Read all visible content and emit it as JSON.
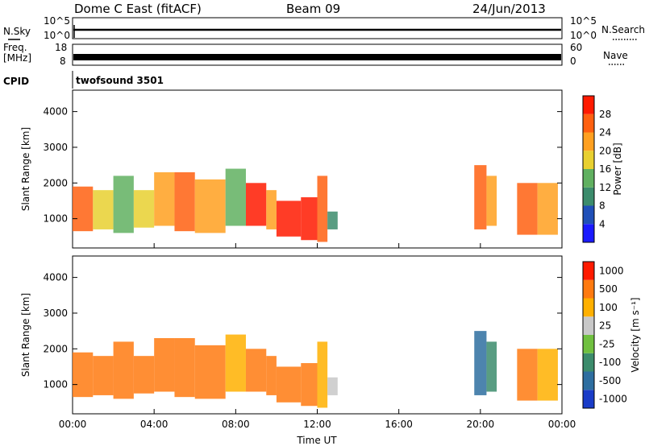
{
  "header": {
    "station": "Dome C East (fitACF)",
    "beam": "Beam 09",
    "date": "24/Jun/2013"
  },
  "panels": {
    "nsky_label": "N.Sky",
    "nsearch_label": "N.Search",
    "freq_label_line1": "Freq.",
    "freq_label_line2": "[MHz]",
    "nave_label": "Nave",
    "cpid_label": "CPID",
    "cpid_value": "twofsound 3501",
    "noise_ticks": [
      "10^5",
      "10^0"
    ],
    "freq_ticks": [
      "18",
      "8"
    ],
    "nave_ticks": [
      "60",
      "0"
    ]
  },
  "chart_data": [
    {
      "type": "heatmap",
      "title": "",
      "xlabel": "Time UT",
      "ylabel": "Slant Range [km]",
      "x_ticks": [
        "00:00",
        "04:00",
        "08:00",
        "12:00",
        "16:00",
        "20:00",
        "00:00"
      ],
      "y_ticks": [
        1000,
        2000,
        3000,
        4000
      ],
      "ylim": [
        180,
        4600
      ],
      "colorbar": {
        "label": "Power [dB]",
        "ticks": [
          4,
          8,
          12,
          16,
          20,
          24,
          28
        ],
        "colors": [
          "#1a1aff",
          "#2050b8",
          "#3c8c6c",
          "#60b060",
          "#e8d030",
          "#ffa020",
          "#ff6010",
          "#ff1a00"
        ]
      },
      "echo_regions": [
        {
          "t_start": 0.0,
          "t_end": 1.0,
          "r_low": 650,
          "r_high": 1900,
          "level": 6
        },
        {
          "t_start": 1.0,
          "t_end": 2.0,
          "r_low": 700,
          "r_high": 1800,
          "level": 4
        },
        {
          "t_start": 2.0,
          "t_end": 3.0,
          "r_low": 600,
          "r_high": 2200,
          "level": 3
        },
        {
          "t_start": 3.0,
          "t_end": 4.0,
          "r_low": 750,
          "r_high": 1800,
          "level": 4
        },
        {
          "t_start": 4.0,
          "t_end": 5.0,
          "r_low": 800,
          "r_high": 2300,
          "level": 5
        },
        {
          "t_start": 5.0,
          "t_end": 6.0,
          "r_low": 650,
          "r_high": 2300,
          "level": 6
        },
        {
          "t_start": 6.0,
          "t_end": 7.5,
          "r_low": 600,
          "r_high": 2100,
          "level": 5
        },
        {
          "t_start": 7.5,
          "t_end": 8.5,
          "r_low": 800,
          "r_high": 2400,
          "level": 3
        },
        {
          "t_start": 8.5,
          "t_end": 9.5,
          "r_low": 800,
          "r_high": 2000,
          "level": 7
        },
        {
          "t_start": 9.5,
          "t_end": 10.0,
          "r_low": 700,
          "r_high": 1800,
          "level": 5
        },
        {
          "t_start": 10.0,
          "t_end": 11.2,
          "r_low": 500,
          "r_high": 1500,
          "level": 7
        },
        {
          "t_start": 11.2,
          "t_end": 12.0,
          "r_low": 400,
          "r_high": 1600,
          "level": 7
        },
        {
          "t_start": 12.0,
          "t_end": 12.5,
          "r_low": 350,
          "r_high": 2200,
          "level": 6
        },
        {
          "t_start": 12.5,
          "t_end": 13.0,
          "r_low": 700,
          "r_high": 1200,
          "level": 2
        },
        {
          "t_start": 19.7,
          "t_end": 20.3,
          "r_low": 700,
          "r_high": 2500,
          "level": 6
        },
        {
          "t_start": 20.3,
          "t_end": 20.8,
          "r_low": 800,
          "r_high": 2200,
          "level": 5
        },
        {
          "t_start": 21.8,
          "t_end": 22.8,
          "r_low": 550,
          "r_high": 2000,
          "level": 6
        },
        {
          "t_start": 22.8,
          "t_end": 23.8,
          "r_low": 550,
          "r_high": 2000,
          "level": 5
        }
      ]
    },
    {
      "type": "heatmap",
      "title": "",
      "xlabel": "Time UT",
      "ylabel": "Slant Range [km]",
      "x_ticks": [
        "00:00",
        "04:00",
        "08:00",
        "12:00",
        "16:00",
        "20:00",
        "00:00"
      ],
      "y_ticks": [
        1000,
        2000,
        3000,
        4000
      ],
      "ylim": [
        180,
        4600
      ],
      "colorbar": {
        "label": "Velocity [m s⁻¹]",
        "ticks": [
          "1000",
          "500",
          "100",
          "25",
          "-25",
          "-100",
          "-500",
          "-1000"
        ],
        "colors": [
          "#1a3cc8",
          "#2e6ea0",
          "#3c8c6c",
          "#70c040",
          "#c8c8c8",
          "#ffb000",
          "#ff7a10",
          "#ff1a00"
        ]
      },
      "echo_regions": [
        {
          "t_start": 0.0,
          "t_end": 1.0,
          "r_low": 650,
          "r_high": 1900,
          "level": 6
        },
        {
          "t_start": 1.0,
          "t_end": 2.0,
          "r_low": 700,
          "r_high": 1800,
          "level": 6
        },
        {
          "t_start": 2.0,
          "t_end": 3.0,
          "r_low": 600,
          "r_high": 2200,
          "level": 6
        },
        {
          "t_start": 3.0,
          "t_end": 4.0,
          "r_low": 750,
          "r_high": 1800,
          "level": 6
        },
        {
          "t_start": 4.0,
          "t_end": 5.0,
          "r_low": 800,
          "r_high": 2300,
          "level": 6
        },
        {
          "t_start": 5.0,
          "t_end": 6.0,
          "r_low": 650,
          "r_high": 2300,
          "level": 6
        },
        {
          "t_start": 6.0,
          "t_end": 7.5,
          "r_low": 600,
          "r_high": 2100,
          "level": 6
        },
        {
          "t_start": 7.5,
          "t_end": 8.5,
          "r_low": 800,
          "r_high": 2400,
          "level": 5
        },
        {
          "t_start": 8.5,
          "t_end": 9.5,
          "r_low": 800,
          "r_high": 2000,
          "level": 6
        },
        {
          "t_start": 9.5,
          "t_end": 10.0,
          "r_low": 700,
          "r_high": 1800,
          "level": 6
        },
        {
          "t_start": 10.0,
          "t_end": 11.2,
          "r_low": 500,
          "r_high": 1500,
          "level": 6
        },
        {
          "t_start": 11.2,
          "t_end": 12.0,
          "r_low": 400,
          "r_high": 1600,
          "level": 6
        },
        {
          "t_start": 12.0,
          "t_end": 12.5,
          "r_low": 350,
          "r_high": 2200,
          "level": 5
        },
        {
          "t_start": 12.5,
          "t_end": 13.0,
          "r_low": 700,
          "r_high": 1200,
          "level": 4
        },
        {
          "t_start": 19.7,
          "t_end": 20.3,
          "r_low": 700,
          "r_high": 2500,
          "level": 1
        },
        {
          "t_start": 20.3,
          "t_end": 20.8,
          "r_low": 800,
          "r_high": 2200,
          "level": 2
        },
        {
          "t_start": 21.8,
          "t_end": 22.8,
          "r_low": 550,
          "r_high": 2000,
          "level": 6
        },
        {
          "t_start": 22.8,
          "t_end": 23.8,
          "r_low": 550,
          "r_high": 2000,
          "level": 5
        }
      ]
    }
  ]
}
